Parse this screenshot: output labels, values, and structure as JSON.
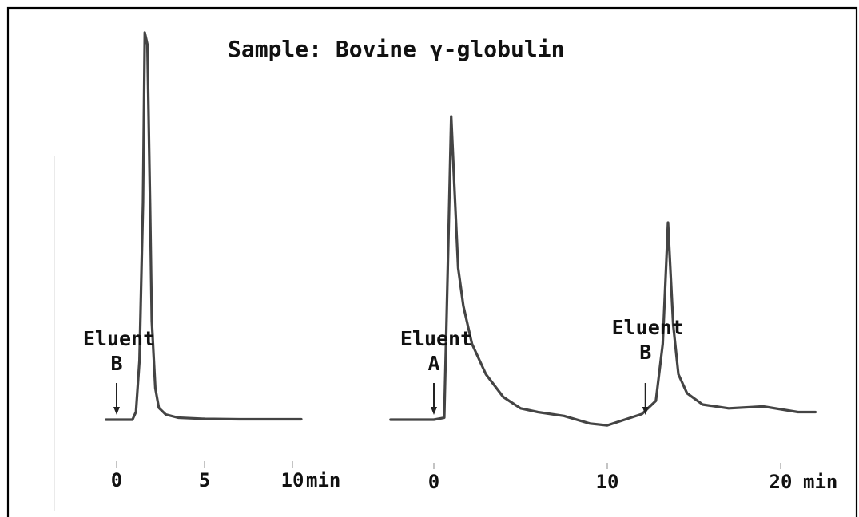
{
  "title": "Sample: Bovine γ-globulin",
  "chart_data": [
    {
      "type": "line",
      "panel": "left",
      "xlim": [
        -1,
        11
      ],
      "ylim": [
        0,
        100
      ],
      "x_ticks": [
        {
          "value": 0,
          "label": "0"
        },
        {
          "value": 5,
          "label": "5"
        },
        {
          "value": 10,
          "label": "10"
        }
      ],
      "x_unit": "min",
      "annotations": [
        {
          "text": [
            "Eluent",
            "B"
          ],
          "x": 0
        }
      ],
      "series": [
        {
          "x": [
            -0.6,
            0.9,
            1.1,
            1.3,
            1.5,
            1.6,
            1.75,
            1.9,
            2.0,
            2.2,
            2.4,
            2.8,
            3.5,
            5,
            7,
            9,
            10.5
          ],
          "y": [
            0,
            0,
            2,
            15,
            55,
            98,
            95,
            55,
            25,
            8,
            3,
            1.3,
            0.5,
            0.2,
            0.1,
            0.1,
            0.1
          ]
        }
      ]
    },
    {
      "type": "line",
      "panel": "right",
      "xlim": [
        -3,
        22
      ],
      "ylim": [
        0,
        100
      ],
      "x_ticks": [
        {
          "value": 0,
          "label": "0"
        },
        {
          "value": 10,
          "label": "10"
        },
        {
          "value": 20,
          "label": "20"
        }
      ],
      "x_unit": "min",
      "annotations": [
        {
          "text": [
            "Eluent",
            "A"
          ],
          "x": 0
        },
        {
          "text": [
            "Eluent",
            "B"
          ],
          "x": 12.2
        }
      ],
      "series": [
        {
          "x": [
            -2.5,
            0,
            0.6,
            0.8,
            1.0,
            1.2,
            1.4,
            1.7,
            2.2,
            3,
            4,
            5,
            6,
            7.5,
            9,
            10,
            11,
            12,
            12.8,
            13.2,
            13.5,
            13.8,
            14.1,
            14.6,
            15.5,
            17,
            19,
            21,
            22
          ],
          "y": [
            0,
            0,
            0.5,
            40,
            80,
            60,
            40,
            30,
            20,
            12,
            6,
            3,
            2,
            1,
            -1,
            -1.5,
            0,
            1.5,
            5,
            20,
            52,
            25,
            12,
            7,
            4,
            3,
            3.5,
            2,
            2
          ]
        }
      ]
    }
  ]
}
